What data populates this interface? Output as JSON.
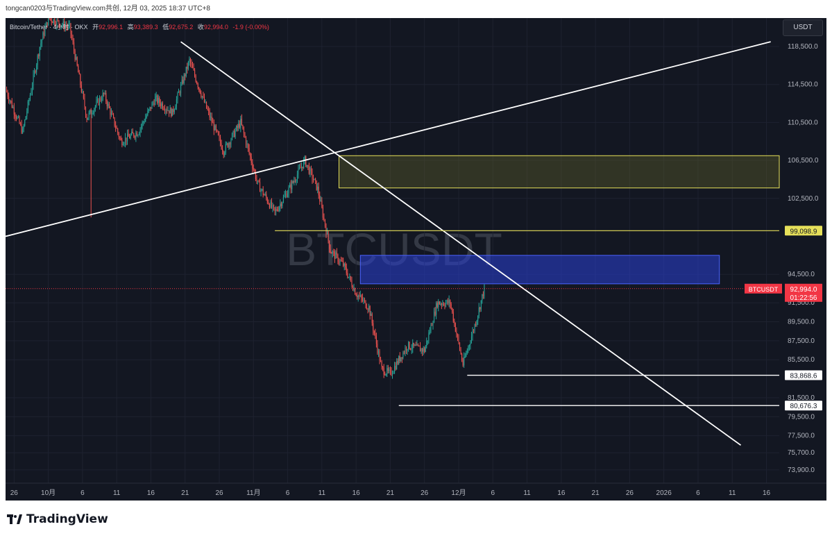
{
  "header": {
    "share_text": "tongcan0203与TradingView.com共创, 12月 03, 2025 18:37 UTC+8"
  },
  "legend": {
    "symbol": "Bitcoin/Tether · 4小时 · OKX",
    "open_label": "开",
    "open": "92,996.1",
    "high_label": "高",
    "high": "93,389.3",
    "low_label": "低",
    "low": "92,675.2",
    "close_label": "收",
    "close": "92,994.0",
    "change": "-1.9 (-0.00%)"
  },
  "currency_button": "USDT",
  "watermark": "BTCUSDT",
  "footer": {
    "brand": "TradingView"
  },
  "colors": {
    "background": "#131722",
    "up": "#26a69a",
    "down": "#ef5350",
    "trend_line": "#ffffff",
    "yellow_zone": "#e6e05a",
    "blue_zone": "#2a3fd6",
    "price_tag": "#f23645"
  },
  "chart_data": {
    "type": "candlestick",
    "ylim": [
      72500,
      121500
    ],
    "y_ticks": [
      "118,500.0",
      "114,500.0",
      "110,500.0",
      "106,500.0",
      "102,500.0",
      "94,500.0",
      "91,500.0",
      "89,500.0",
      "87,500.0",
      "85,500.0",
      "81,500.0",
      "79,500.0",
      "77,500.0",
      "75,700.0",
      "73,900.0"
    ],
    "x_ticks": [
      "26",
      "10月",
      "6",
      "11",
      "16",
      "21",
      "26",
      "11月",
      "6",
      "11",
      "16",
      "21",
      "26",
      "12月",
      "6",
      "11",
      "16",
      "21",
      "26",
      "2026",
      "6",
      "11",
      "16"
    ],
    "price_anchors": [
      {
        "t": 0,
        "p": 114000
      },
      {
        "t": 4,
        "p": 109500
      },
      {
        "t": 8,
        "p": 118500
      },
      {
        "t": 10,
        "p": 121500
      },
      {
        "t": 15,
        "p": 120500
      },
      {
        "t": 19,
        "p": 111000
      },
      {
        "t": 23,
        "p": 113500
      },
      {
        "t": 27,
        "p": 108500
      },
      {
        "t": 31,
        "p": 109500
      },
      {
        "t": 35,
        "p": 113000
      },
      {
        "t": 39,
        "p": 111500
      },
      {
        "t": 43,
        "p": 117000
      },
      {
        "t": 47,
        "p": 112000
      },
      {
        "t": 51,
        "p": 107500
      },
      {
        "t": 55,
        "p": 110500
      },
      {
        "t": 59,
        "p": 104000
      },
      {
        "t": 63,
        "p": 101000
      },
      {
        "t": 67,
        "p": 104000
      },
      {
        "t": 70,
        "p": 106500
      },
      {
        "t": 73,
        "p": 103500
      },
      {
        "t": 76,
        "p": 97000
      },
      {
        "t": 79,
        "p": 95500
      },
      {
        "t": 82,
        "p": 92500
      },
      {
        "t": 85,
        "p": 91000
      },
      {
        "t": 88,
        "p": 84500
      },
      {
        "t": 90,
        "p": 84000
      },
      {
        "t": 94,
        "p": 87000
      },
      {
        "t": 98,
        "p": 86500
      },
      {
        "t": 101,
        "p": 91500
      },
      {
        "t": 104,
        "p": 91500
      },
      {
        "t": 107,
        "p": 85000
      },
      {
        "t": 110,
        "p": 89500
      },
      {
        "t": 112,
        "p": 93000
      }
    ],
    "spike_low": {
      "t": 20,
      "p": 100500
    },
    "drawings": {
      "rising_trendline": {
        "from": {
          "t": 0,
          "p": 98500
        },
        "to": {
          "t": 179,
          "p": 119000
        }
      },
      "falling_trendline": {
        "from": {
          "t": 41,
          "p": 119000
        },
        "to": {
          "t": 172,
          "p": 76500
        }
      },
      "yellow_zone": {
        "t_start": 78,
        "t_end": 181,
        "top": 107000,
        "bottom": 103600
      },
      "blue_zone": {
        "t_start": 83,
        "t_end": 167,
        "top": 96500,
        "bottom": 93500
      },
      "resistance_line": {
        "t_start": 63,
        "price": 99098.9,
        "label": "99,098.9"
      },
      "support_line_1": {
        "t_start": 108,
        "price": 83868.6,
        "label": "83,868.6"
      },
      "support_line_2": {
        "t_start": 92,
        "price": 80676.3,
        "label": "80,676.3"
      }
    },
    "current_price": {
      "price": 92994.0,
      "label": "92,994.0",
      "symbol_tag": "BTCUSDT",
      "countdown": "01:22:56"
    }
  }
}
